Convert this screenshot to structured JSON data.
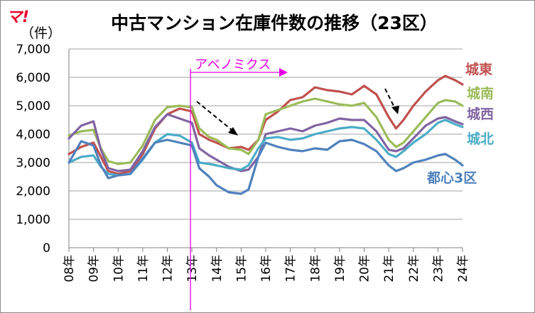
{
  "logo": "マ!",
  "chart_data": {
    "type": "line",
    "title": "中古マンション在庫件数の推移（23区）",
    "ylabel": "（件）",
    "ylim": [
      0,
      7000
    ],
    "yticks": [
      "0",
      "1,000",
      "2,000",
      "3,000",
      "4,000",
      "5,000",
      "6,000",
      "7,000"
    ],
    "categories": [
      "08年",
      "09年",
      "10年",
      "11年",
      "12年",
      "13年",
      "14年",
      "15年",
      "16年",
      "17年",
      "18年",
      "19年",
      "20年",
      "21年",
      "22年",
      "23年",
      "24年"
    ],
    "annotation": {
      "label": "アベノミクス",
      "x_year": 13,
      "color": "#e600e6"
    },
    "colors": {
      "logo": "#e8002d",
      "grid": "#a0a0a0"
    },
    "series": [
      {
        "name": "城東",
        "color": "#c0504d",
        "x": [
          8.0,
          8.5,
          9.0,
          9.3,
          9.6,
          10.0,
          10.5,
          11.0,
          11.5,
          12.0,
          12.5,
          13.0,
          13.3,
          13.7,
          14.0,
          14.5,
          15.0,
          15.3,
          15.7,
          16.0,
          16.5,
          17.0,
          17.5,
          18.0,
          18.5,
          19.0,
          19.5,
          20.0,
          20.5,
          21.0,
          21.3,
          21.6,
          22.0,
          22.5,
          23.0,
          23.3,
          23.7,
          24.0
        ],
        "values": [
          3300,
          3550,
          3700,
          3200,
          2700,
          2600,
          2700,
          3300,
          4200,
          4700,
          4900,
          4800,
          4000,
          3800,
          3700,
          3500,
          3550,
          3450,
          3800,
          4500,
          4800,
          5200,
          5300,
          5650,
          5550,
          5500,
          5400,
          5700,
          5400,
          4600,
          4200,
          4500,
          5000,
          5500,
          5900,
          6050,
          5900,
          5750
        ]
      },
      {
        "name": "城南",
        "color": "#9bbb59",
        "x": [
          8.0,
          8.5,
          9.0,
          9.3,
          9.6,
          10.0,
          10.5,
          11.0,
          11.5,
          12.0,
          12.5,
          13.0,
          13.3,
          13.7,
          14.0,
          14.5,
          15.0,
          15.3,
          15.7,
          16.0,
          16.5,
          17.0,
          17.5,
          18.0,
          18.5,
          19.0,
          19.5,
          20.0,
          20.5,
          21.0,
          21.3,
          21.6,
          22.0,
          22.5,
          23.0,
          23.3,
          23.7,
          24.0
        ],
        "values": [
          3950,
          4100,
          4150,
          3500,
          3050,
          2950,
          3000,
          3600,
          4500,
          4950,
          5000,
          4950,
          4200,
          3900,
          3800,
          3500,
          3450,
          3300,
          3800,
          4700,
          4850,
          5000,
          5150,
          5250,
          5150,
          5050,
          5000,
          5100,
          4600,
          3800,
          3550,
          3700,
          4100,
          4600,
          5100,
          5200,
          5150,
          5000
        ]
      },
      {
        "name": "城西",
        "color": "#8064a2",
        "x": [
          8.0,
          8.5,
          9.0,
          9.3,
          9.6,
          10.0,
          10.5,
          11.0,
          11.5,
          12.0,
          12.5,
          13.0,
          13.3,
          13.7,
          14.0,
          14.5,
          15.0,
          15.3,
          15.7,
          16.0,
          16.5,
          17.0,
          17.5,
          18.0,
          18.5,
          19.0,
          19.5,
          20.0,
          20.5,
          21.0,
          21.3,
          21.6,
          22.0,
          22.5,
          23.0,
          23.3,
          23.7,
          24.0
        ],
        "values": [
          3850,
          4300,
          4450,
          3450,
          2800,
          2700,
          2750,
          3400,
          4250,
          4700,
          4550,
          4400,
          3500,
          3250,
          3100,
          2850,
          2700,
          2750,
          3200,
          4000,
          4100,
          4200,
          4100,
          4300,
          4400,
          4550,
          4500,
          4500,
          4100,
          3450,
          3400,
          3500,
          3850,
          4300,
          4550,
          4600,
          4450,
          4350
        ]
      },
      {
        "name": "城北",
        "color": "#4bacc6",
        "x": [
          8.0,
          8.5,
          9.0,
          9.3,
          9.6,
          10.0,
          10.5,
          11.0,
          11.5,
          12.0,
          12.5,
          13.0,
          13.3,
          13.7,
          14.0,
          14.5,
          15.0,
          15.3,
          15.7,
          16.0,
          16.5,
          17.0,
          17.5,
          18.0,
          18.5,
          19.0,
          19.5,
          20.0,
          20.5,
          21.0,
          21.3,
          21.6,
          22.0,
          22.5,
          23.0,
          23.3,
          23.7,
          24.0
        ],
        "values": [
          3000,
          3200,
          3250,
          2850,
          2600,
          2550,
          2600,
          3100,
          3700,
          4000,
          3950,
          3700,
          3000,
          2950,
          2900,
          2800,
          2750,
          2900,
          3500,
          3850,
          3900,
          3800,
          3850,
          4000,
          4100,
          4200,
          4250,
          4200,
          3800,
          3300,
          3200,
          3400,
          3700,
          4000,
          4400,
          4500,
          4350,
          4250
        ]
      },
      {
        "name": "都心3区",
        "color": "#4f81bd",
        "x": [
          8.0,
          8.5,
          9.0,
          9.3,
          9.6,
          10.0,
          10.5,
          11.0,
          11.5,
          12.0,
          12.5,
          13.0,
          13.3,
          13.7,
          14.0,
          14.5,
          15.0,
          15.3,
          15.7,
          16.0,
          16.5,
          17.0,
          17.5,
          18.0,
          18.5,
          19.0,
          19.5,
          20.0,
          20.5,
          21.0,
          21.3,
          21.6,
          22.0,
          22.5,
          23.0,
          23.3,
          23.7,
          24.0
        ],
        "values": [
          3000,
          3750,
          3600,
          2900,
          2450,
          2550,
          2600,
          3150,
          3700,
          3800,
          3700,
          3600,
          2800,
          2500,
          2200,
          1950,
          1900,
          2050,
          3200,
          3700,
          3550,
          3450,
          3400,
          3500,
          3450,
          3750,
          3800,
          3650,
          3400,
          2900,
          2700,
          2800,
          3000,
          3100,
          3250,
          3300,
          3100,
          2900
        ]
      }
    ]
  }
}
